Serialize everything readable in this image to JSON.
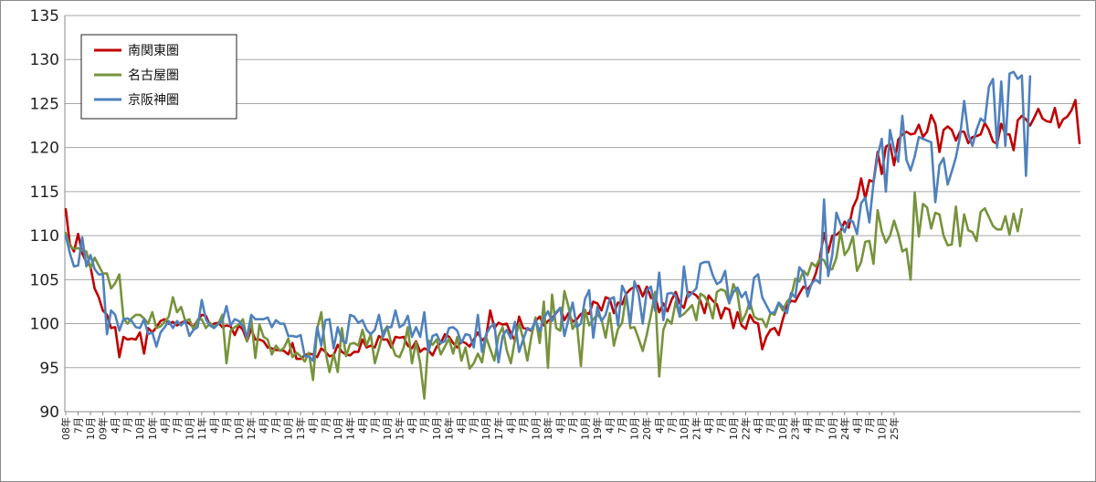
{
  "chart_data": {
    "type": "line",
    "title": "",
    "xlabel": "",
    "ylabel": "",
    "ylim": [
      90,
      135
    ],
    "yticks": [
      90,
      95,
      100,
      105,
      110,
      115,
      120,
      125,
      130,
      135
    ],
    "grid": "horizontal",
    "legend_position": "top-left",
    "x_tick_labels": [
      "08年",
      "7月",
      "10月",
      "09年",
      "4月",
      "7月",
      "10月",
      "10年",
      "4月",
      "7月",
      "10月",
      "11年",
      "4月",
      "7月",
      "10月",
      "12年",
      "4月",
      "7月",
      "10月",
      "13年",
      "4月",
      "7月",
      "10月",
      "14年",
      "4月",
      "7月",
      "10月",
      "15年",
      "4月",
      "7月",
      "10月",
      "16年",
      "4月",
      "7月",
      "10月",
      "17年",
      "4月",
      "7月",
      "10月",
      "18年",
      "4月",
      "7月",
      "10月",
      "19年",
      "4月",
      "7月",
      "10月",
      "20年",
      "4月",
      "7月",
      "10月",
      "21年",
      "4月",
      "7月",
      "10月",
      "22年",
      "4月",
      "7月",
      "10月",
      "23年",
      "4月",
      "7月",
      "10月",
      "24年",
      "4月",
      "7月",
      "10月",
      "25年"
    ],
    "series": [
      {
        "name": "南関東圏",
        "color": "#c00000",
        "values": [
          113,
          109,
          108.2,
          110.2,
          108,
          107,
          106.5,
          104,
          103,
          101.5,
          101,
          99.5,
          99.6,
          96.2,
          98.5,
          98.2,
          98.3,
          98.2,
          99,
          96.6,
          99.5,
          99,
          99.6,
          100.3,
          100.5,
          100,
          100.2,
          99.8,
          100.1,
          100.3,
          100,
          99.6,
          100.4,
          101,
          100.9,
          99.8,
          100,
          100.1,
          99.6,
          99.8,
          99.7,
          98.7,
          99.8,
          99.3,
          98,
          99.4,
          98.2,
          98.2,
          98,
          97.3,
          97.2,
          97,
          97,
          96.9,
          96.5,
          97.8,
          96,
          96,
          96.4,
          96.6,
          96.5,
          96.2,
          97.2,
          96.8,
          96.3,
          96.4,
          97.6,
          96.8,
          96.5,
          96.4,
          96.8,
          96.8,
          98.2,
          97.3,
          97.5,
          97.3,
          98.6,
          98.2,
          98.2,
          97.3,
          98.5,
          98.4,
          98.5,
          97.5,
          97.2,
          98,
          96.8,
          97.2,
          97,
          96.4,
          97.4,
          97.8,
          98.8,
          98.5,
          97.8,
          97.3,
          98,
          97.8,
          97.4,
          98.2,
          99,
          98.1,
          98.5,
          101.5,
          99.5,
          100.1,
          99.9,
          100,
          98.9,
          98.1,
          100.8,
          99.5,
          99.4,
          99.2,
          100.3,
          100.8,
          99.8,
          100.3,
          100.6,
          101.2,
          101.8,
          100.4,
          101.2,
          100.2,
          100.5,
          101.1,
          101.3,
          101.1,
          102.5,
          102.3,
          101.5,
          103,
          102.8,
          101.2,
          102.4,
          102.2,
          103.4,
          103.9,
          104.2,
          104.3,
          103.1,
          104.2,
          102.9,
          103.2,
          101.3,
          102.3,
          101.4,
          102.7,
          103.6,
          102.3,
          101.8,
          103.6,
          103.5,
          103.2,
          102.6,
          101.2,
          103.2,
          102.6,
          102.2,
          100.6,
          101.8,
          101.6,
          99.5,
          101.3,
          99.8,
          99.4,
          101,
          100.2,
          100,
          97.1,
          98.5,
          99.3,
          99.5,
          98.7,
          100.5,
          102,
          102.6,
          102.5,
          103.4,
          104.2,
          103.9,
          104.5,
          105.7,
          107.5,
          110.3,
          108.1,
          110,
          110.1,
          110.5,
          111.6,
          110.9,
          113.2,
          114.2,
          116.5,
          114.2,
          116.3,
          116.1,
          119.5,
          117,
          120.1,
          120.4,
          118,
          120.9,
          121.5,
          121.8,
          121.5,
          121.6,
          122.6,
          121.2,
          121.8,
          123.7,
          122.7,
          119.5,
          122,
          122.4,
          122,
          120.8,
          121.8,
          121.8,
          120.5,
          121.2,
          121.3,
          121.5,
          122.8,
          122,
          120.7,
          120.4,
          122.7,
          121.5,
          121.5,
          119.7,
          123.1,
          123.6,
          123.2,
          122.5,
          123.4,
          124.4,
          123.3,
          123,
          122.9,
          124.5,
          122.3,
          123.2,
          123.5,
          124.2,
          125.4,
          120.5
        ]
      },
      {
        "name": "名古屋圏",
        "color": "#77933c",
        "values": [
          110.3,
          108.8,
          108.5,
          108.6,
          108.3,
          108.2,
          106.3,
          107.5,
          106.6,
          105.7,
          105.7,
          104,
          104.6,
          105.6,
          100.6,
          100,
          100.6,
          101,
          101,
          100.6,
          100,
          101.3,
          99.5,
          99.7,
          100.2,
          100.8,
          103,
          101.3,
          101.9,
          100.3,
          100.5,
          99.3,
          100.4,
          100.5,
          99.5,
          100.1,
          99.6,
          100,
          101,
          95.5,
          99.2,
          99.6,
          99.9,
          100.5,
          98,
          100.6,
          96.1,
          99.9,
          98.5,
          98.2,
          96.5,
          97.5,
          96.9,
          97.3,
          98.3,
          96.2,
          96.7,
          96.3,
          95.7,
          96.7,
          93.6,
          99.4,
          101.3,
          96.9,
          94.5,
          96.6,
          94.5,
          99.5,
          96.3,
          97.7,
          97.8,
          97.5,
          99.3,
          97.5,
          98.8,
          95.5,
          97.2,
          99,
          99.7,
          97.7,
          96.4,
          96.2,
          97.3,
          99.6,
          95.5,
          97.9,
          95.5,
          91.5,
          98.1,
          97.6,
          98.2,
          96.5,
          97.4,
          98.3,
          96.6,
          98.5,
          95.8,
          97.3,
          94.9,
          95.5,
          96.6,
          95.6,
          98.5,
          97.1,
          95.8,
          98.6,
          99.6,
          97,
          95.5,
          98.2,
          100,
          98.3,
          95.8,
          98.6,
          100.7,
          97.8,
          102.5,
          95,
          103.3,
          99.5,
          99.2,
          103.7,
          101.9,
          99.4,
          100.2,
          95.2,
          101.6,
          99.8,
          100.5,
          101,
          100.5,
          98.4,
          101.2,
          97.5,
          99.4,
          100.1,
          103.3,
          99.5,
          99.6,
          98.3,
          96.9,
          98.8,
          101,
          103.6,
          94,
          99.3,
          100.5,
          100,
          102.5,
          100.8,
          101.1,
          101.6,
          102.1,
          100.4,
          103.4,
          103.1,
          102.3,
          100.6,
          103.6,
          103.9,
          103.7,
          102.3,
          104.5,
          103.4,
          100.2,
          101.1,
          102.5,
          100.8,
          100.5,
          100.5,
          99.6,
          101.2,
          101,
          102.3,
          101.5,
          102.5,
          103,
          105.1,
          104.8,
          106,
          105.5,
          106.9,
          106.5,
          107.4,
          107.2,
          106.1,
          106.2,
          107.5,
          110.5,
          107.8,
          108.5,
          109.9,
          106,
          107,
          109.3,
          109.4,
          106.8,
          112.9,
          110.5,
          109.2,
          110,
          111.7,
          110.2,
          108.2,
          108.5,
          105,
          114.9,
          109.9,
          113.6,
          113.2,
          110.8,
          112.6,
          112.4,
          110,
          108.9,
          109,
          113.3,
          108.8,
          112.4,
          110.6,
          110.4,
          109.4,
          112.7,
          113.1,
          112.1,
          111.1,
          110.7,
          110.7,
          112.2,
          110.1,
          112.5,
          110.5,
          113
        ]
      },
      {
        "name": "京阪神圏",
        "color": "#4f81bd",
        "values": [
          110,
          108,
          106.5,
          106.6,
          109.8,
          106.5,
          107.8,
          106.2,
          105.6,
          105.6,
          98.8,
          101.5,
          101,
          99.2,
          100.5,
          100.6,
          100.3,
          99.6,
          99.5,
          100.5,
          98.8,
          99,
          97.4,
          99,
          99.6,
          100.3,
          99.5,
          100.3,
          99.8,
          100.3,
          98.6,
          99.3,
          99.6,
          102.7,
          100.5,
          99.8,
          99.5,
          100,
          100.3,
          102,
          99.8,
          100.5,
          100.3,
          99.7,
          98.5,
          101,
          100.5,
          100.5,
          100.5,
          100.7,
          99.6,
          100.4,
          100,
          100,
          98.6,
          98.6,
          98.5,
          98.7,
          96.3,
          96.3,
          95.8,
          99.6,
          97.5,
          100.4,
          100.5,
          97.2,
          99.6,
          98.1,
          97.8,
          101,
          100.8,
          100.1,
          100.4,
          99.3,
          98.8,
          99.3,
          101,
          98.5,
          99.6,
          99.6,
          101.5,
          99.6,
          99.9,
          100.9,
          98.5,
          99.6,
          98.5,
          101.3,
          96.8,
          98.6,
          98.8,
          97.8,
          98,
          99.5,
          99.6,
          99.2,
          97.8,
          98.8,
          98.7,
          97.3,
          101,
          96.8,
          98.8,
          99.6,
          100,
          95.6,
          98.6,
          99.3,
          98.3,
          100.2,
          96.8,
          98.2,
          99.5,
          99.3,
          100.4,
          99.1,
          100.6,
          101.4,
          100.3,
          101.3,
          101.8,
          98.6,
          100.5,
          102.4,
          99.6,
          100,
          102.8,
          103.8,
          98.4,
          101.9,
          100.3,
          101,
          102.8,
          103,
          99.8,
          104.3,
          103.3,
          100,
          104.8,
          103.4,
          100,
          103.8,
          104.2,
          101.5,
          105.8,
          100.4,
          103.4,
          103.5,
          103.2,
          100.8,
          106.5,
          103,
          103.5,
          104,
          106.8,
          107,
          107,
          105.5,
          104.5,
          104.8,
          106,
          102.4,
          103.6,
          104.1,
          103,
          103.6,
          101.7,
          105.2,
          105.6,
          103,
          102.1,
          101.2,
          101.3,
          102.4,
          101.9,
          101.2,
          103.5,
          103,
          106.4,
          105.8,
          103.1,
          104.6,
          105,
          104.6,
          114.1,
          105.4,
          107.8,
          112.6,
          111.3,
          110.4,
          111.8,
          111.6,
          110.2,
          113.7,
          114.3,
          111.5,
          116,
          119,
          121,
          115,
          122,
          119.8,
          118.4,
          123.6,
          118.6,
          117.4,
          119,
          121.2,
          121,
          120.8,
          120.6,
          113.8,
          118,
          118.8,
          115.8,
          117.3,
          118.9,
          121.3,
          125.3,
          121.5,
          120.2,
          122,
          123.3,
          122.9,
          126.9,
          127.8,
          120,
          127.5,
          120.2,
          128.4,
          128.6,
          127.8,
          128.2,
          116.8,
          128.1
        ]
      }
    ]
  }
}
